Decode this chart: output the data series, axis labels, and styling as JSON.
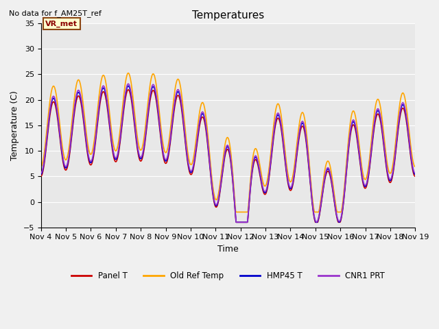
{
  "title": "Temperatures",
  "xlabel": "Time",
  "ylabel": "Temperature (C)",
  "ylim": [
    -5,
    35
  ],
  "xlim": [
    0,
    15
  ],
  "xtick_labels": [
    "Nov 4",
    "Nov 5",
    "Nov 6",
    "Nov 7",
    "Nov 8",
    "Nov 9",
    "Nov 10",
    "Nov 11",
    "Nov 12",
    "Nov 13",
    "Nov 14",
    "Nov 15",
    "Nov 16",
    "Nov 17",
    "Nov 18",
    "Nov 19"
  ],
  "bg_color": "#e8e8e8",
  "panel_t_color": "#cc0000",
  "old_ref_color": "#ffa500",
  "hmp45_color": "#0000cc",
  "cnr1_color": "#9933cc",
  "annotation_text": "No data for f_AM25T_ref",
  "vr_met_text": "VR_met",
  "legend_labels": [
    "Panel T",
    "Old Ref Temp",
    "HMP45 T",
    "CNR1 PRT"
  ]
}
